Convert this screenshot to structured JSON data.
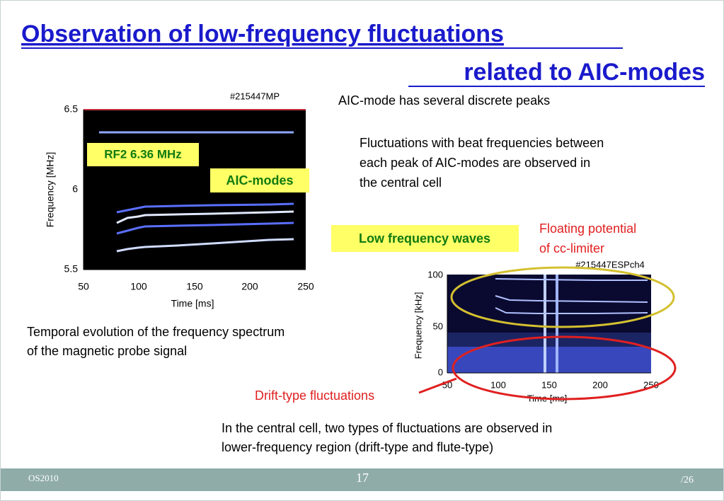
{
  "slide": {
    "title": [
      "Observation of low-frequency fluctuations",
      "related to AIC-modes"
    ],
    "plot1": {
      "label": "#215447MP",
      "yticks": [
        "6.5",
        "6",
        "5.5"
      ],
      "xticks": [
        "50",
        "100",
        "150",
        "200",
        "250"
      ],
      "ylabel": "Frequency  [MHz]",
      "xlabel": "Time [ms]",
      "rf_label": "RF2 6.36 MHz",
      "aic_label": "AIC-modes"
    },
    "caption1": [
      "Temporal evolution of the frequency spectrum",
      "of the magnetic probe signal"
    ],
    "note1": "AIC-mode has several discrete peaks",
    "note2": [
      "Fluctuations with beat frequencies between",
      "each peak of AIC-modes are observed in",
      "the central cell"
    ],
    "low_freq_label": "Low frequency waves",
    "floating_label": [
      "Floating potential",
      "of cc-limiter"
    ],
    "plot2": {
      "label": "#215447ESPch4",
      "yticks": [
        "100",
        "50",
        "0"
      ],
      "xticks": [
        "50",
        "100",
        "150",
        "200",
        "250"
      ],
      "ylabel": "Frequency  [kHz]",
      "xlabel": "Time [ms]"
    },
    "drift_label": "Drift-type fluctuations",
    "bottom_text": [
      "In the central cell, two types of fluctuations are observed in",
      "lower-frequency region (drift-type and flute-type)"
    ],
    "footer": {
      "left": "OS2010",
      "center": "17",
      "right": "/26"
    }
  }
}
